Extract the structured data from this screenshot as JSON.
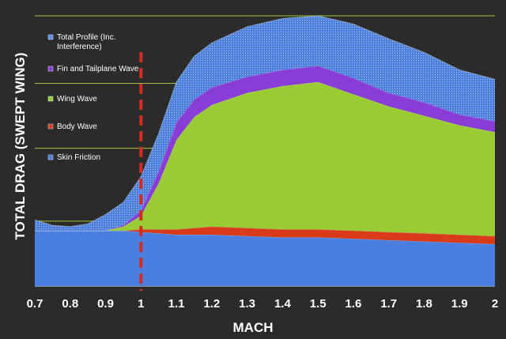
{
  "chart_data": {
    "type": "area",
    "stacked": true,
    "xlabel": "MACH",
    "ylabel": "TOTAL DRAG (SWEPT WING)",
    "xlim": [
      0.7,
      2.0
    ],
    "ylim": [
      0,
      1.0
    ],
    "x_ticks": [
      "0.7",
      "0.8",
      "0.9",
      "1",
      "1.1",
      "1.2",
      "1.3",
      "1.4",
      "1.5",
      "1.6",
      "1.7",
      "1.8",
      "1.9",
      "2"
    ],
    "y_gridlines": [
      0.24,
      0.51,
      0.75,
      1.0
    ],
    "grid": true,
    "legend_position": "left",
    "reference_line": {
      "x": 1.0,
      "style": "dashed",
      "color": "#d82b1f"
    },
    "x": [
      0.7,
      0.75,
      0.8,
      0.85,
      0.9,
      0.95,
      1.0,
      1.05,
      1.1,
      1.15,
      1.2,
      1.3,
      1.4,
      1.5,
      1.6,
      1.7,
      1.8,
      1.9,
      2.0
    ],
    "series": [
      {
        "name": "Skin Friction",
        "color": "#4a7fe0",
        "values": [
          0.205,
          0.205,
          0.205,
          0.205,
          0.205,
          0.205,
          0.2,
          0.195,
          0.19,
          0.19,
          0.19,
          0.185,
          0.18,
          0.18,
          0.175,
          0.17,
          0.165,
          0.16,
          0.155
        ]
      },
      {
        "name": "Body Wave",
        "color": "#d83a1a",
        "values": [
          0,
          0,
          0,
          0,
          0,
          0,
          0.01,
          0.015,
          0.02,
          0.025,
          0.03,
          0.03,
          0.03,
          0.03,
          0.03,
          0.03,
          0.03,
          0.03,
          0.03
        ]
      },
      {
        "name": "Wing Wave",
        "color": "#99cc33",
        "values": [
          0,
          0,
          0,
          0,
          0,
          0.015,
          0.05,
          0.17,
          0.33,
          0.41,
          0.45,
          0.5,
          0.53,
          0.545,
          0.505,
          0.465,
          0.435,
          0.405,
          0.385
        ]
      },
      {
        "name": "Fin and Tailplane Wave",
        "color": "#8a3dd6",
        "values": [
          0,
          0,
          0,
          0,
          0,
          0.005,
          0.02,
          0.045,
          0.065,
          0.065,
          0.065,
          0.06,
          0.06,
          0.06,
          0.06,
          0.05,
          0.05,
          0.04,
          0.04
        ]
      },
      {
        "name": "Total Profile (Inc. Interference)",
        "color": "#5b8ee6",
        "values": [
          0.04,
          0.02,
          0.015,
          0.025,
          0.06,
          0.085,
          0.125,
          0.14,
          0.15,
          0.16,
          0.165,
          0.185,
          0.19,
          0.185,
          0.2,
          0.2,
          0.185,
          0.165,
          0.155
        ]
      }
    ]
  }
}
